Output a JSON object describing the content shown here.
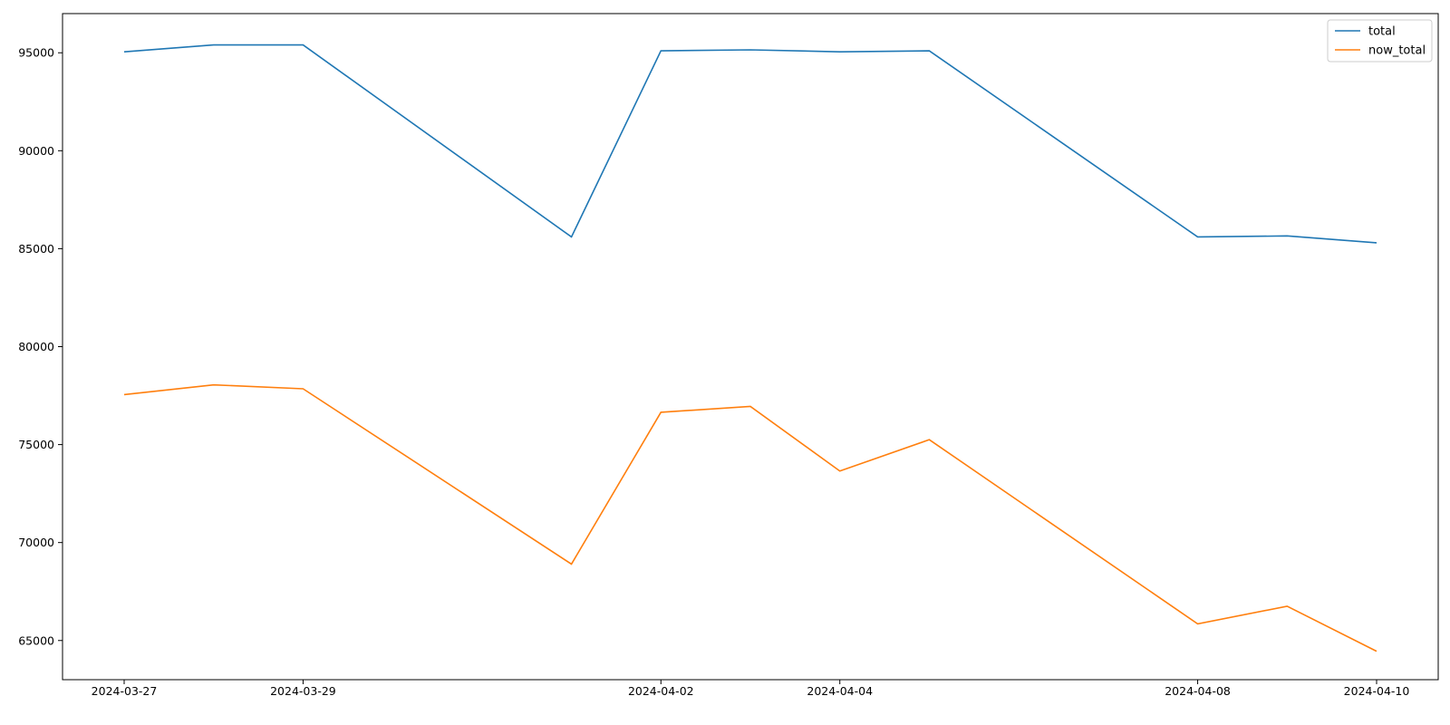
{
  "chart_data": {
    "type": "line",
    "title": "",
    "xlabel": "",
    "ylabel": "",
    "x": [
      "2024-03-27",
      "2024-03-28",
      "2024-03-29",
      "2024-04-01",
      "2024-04-02",
      "2024-04-03",
      "2024-04-04",
      "2024-04-05",
      "2024-04-08",
      "2024-04-09",
      "2024-04-10"
    ],
    "x_tick_labels": [
      "2024-03-27",
      "2024-03-29",
      "2024-04-02",
      "2024-04-04",
      "2024-04-08",
      "2024-04-10"
    ],
    "y_ticks": [
      65000,
      70000,
      75000,
      80000,
      85000,
      90000,
      95000
    ],
    "ylim": [
      63000,
      97000
    ],
    "grid": false,
    "legend_position": "top-right",
    "series": [
      {
        "name": "total",
        "color": "#1f77b4",
        "values": [
          95050,
          95400,
          95400,
          85600,
          95100,
          95150,
          95050,
          95100,
          85600,
          85650,
          85300
        ]
      },
      {
        "name": "now_total",
        "color": "#ff7f0e",
        "values": [
          77550,
          78050,
          77850,
          68900,
          76650,
          76950,
          73650,
          75250,
          65850,
          66750,
          64450
        ]
      }
    ]
  }
}
